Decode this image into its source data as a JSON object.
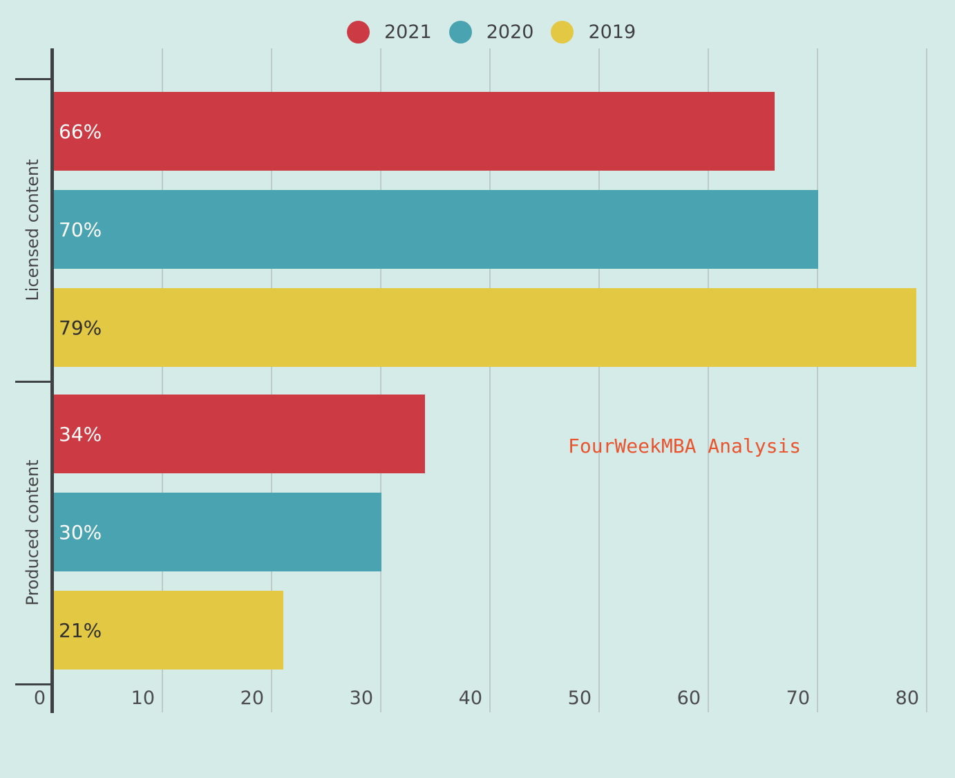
{
  "legend": {
    "items": [
      {
        "label": "2021",
        "color": "#cc3b44"
      },
      {
        "label": "2020",
        "color": "#4aa3b0"
      },
      {
        "label": "2019",
        "color": "#e3c843"
      }
    ]
  },
  "annotation": {
    "text": "FourWeekMBA Analysis",
    "color": "#e9542f"
  },
  "chart_data": {
    "type": "bar",
    "orientation": "horizontal",
    "title": "",
    "xlabel": "",
    "ylabel": "",
    "categories": [
      "Licensed content",
      "Produced content"
    ],
    "series": [
      {
        "name": "2021",
        "color": "#cc3b44",
        "values": [
          66,
          34
        ],
        "label_color": "#ffffff"
      },
      {
        "name": "2020",
        "color": "#4aa3b0",
        "values": [
          70,
          30
        ],
        "label_color": "#ffffff"
      },
      {
        "name": "2019",
        "color": "#e3c843",
        "values": [
          79,
          21
        ],
        "label_color": "#2f2f2f"
      }
    ],
    "value_suffix": "%",
    "x_ticks": [
      0,
      10,
      20,
      30,
      40,
      50,
      60,
      70,
      80
    ],
    "xlim": [
      0,
      85
    ],
    "grid": true,
    "legend_position": "top",
    "annotation": "FourWeekMBA Analysis",
    "background_color": "#d5ebe8",
    "gridline_color": "#bccbc9",
    "axis_color": "#3e4245",
    "tick_label_color": "#4a4a4a"
  }
}
